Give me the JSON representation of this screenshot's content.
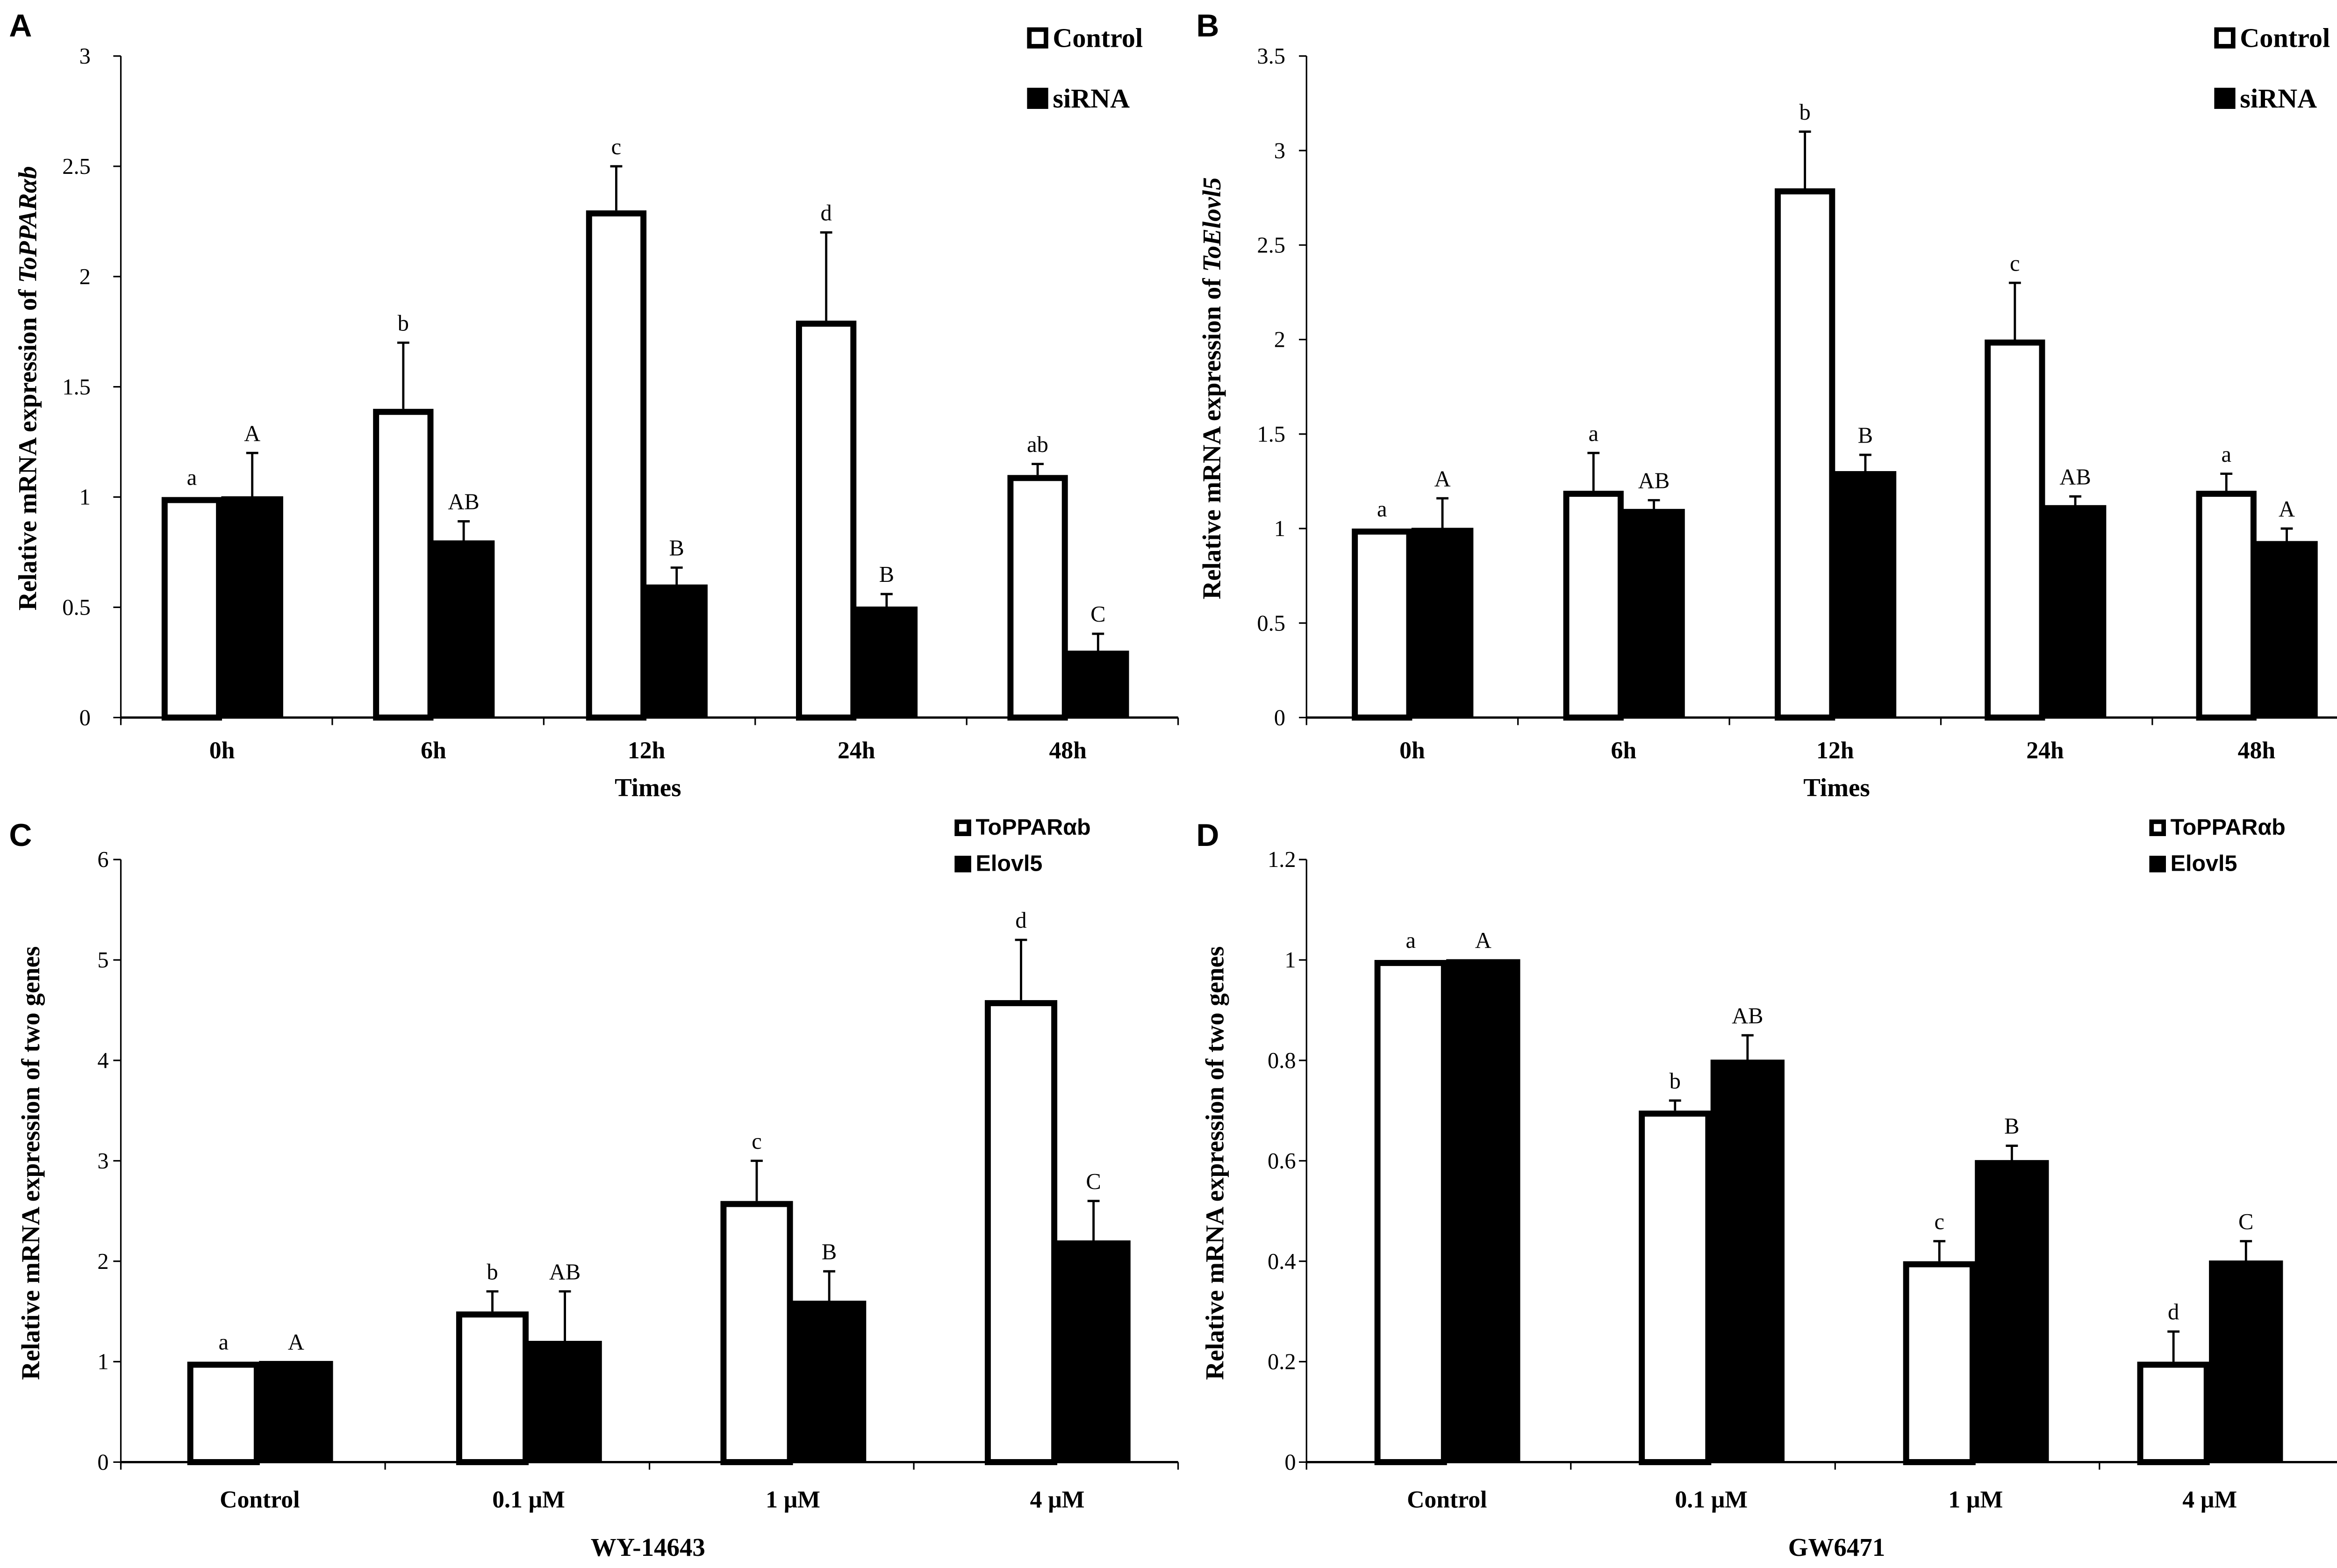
{
  "chart_data": [
    {
      "panel": "A",
      "type": "bar",
      "categories": [
        "0h",
        "6h",
        "12h",
        "24h",
        "48h"
      ],
      "series": [
        {
          "name": "Control",
          "fill": "white",
          "values": [
            1.0,
            1.4,
            2.3,
            1.8,
            1.1
          ],
          "errors": [
            0.0,
            0.3,
            0.2,
            0.4,
            0.05
          ],
          "letters": [
            "a",
            "b",
            "c",
            "d",
            "ab"
          ]
        },
        {
          "name": "siRNA",
          "fill": "black",
          "values": [
            1.0,
            0.8,
            0.6,
            0.5,
            0.3
          ],
          "errors": [
            0.2,
            0.09,
            0.08,
            0.06,
            0.08
          ],
          "letters": [
            "A",
            "AB",
            "B",
            "B",
            "C"
          ]
        }
      ],
      "ylabel_prefix": "Relative mRNA expression of ",
      "ylabel_gene": "ToPPARαb",
      "xlabel": "Times",
      "ylim": [
        0,
        3
      ],
      "yticks": [
        "0",
        "0.5",
        "1",
        "1.5",
        "2",
        "2.5",
        "3"
      ],
      "legend": "top-right"
    },
    {
      "panel": "B",
      "type": "bar",
      "categories": [
        "0h",
        "6h",
        "12h",
        "24h",
        "48h"
      ],
      "series": [
        {
          "name": "Control",
          "fill": "white",
          "values": [
            1.0,
            1.2,
            2.8,
            2.0,
            1.2
          ],
          "errors": [
            0.0,
            0.2,
            0.3,
            0.3,
            0.09
          ],
          "letters": [
            "a",
            "a",
            "b",
            "c",
            "a"
          ]
        },
        {
          "name": "siRNA",
          "fill": "black",
          "values": [
            1.0,
            1.1,
            1.3,
            1.12,
            0.93
          ],
          "errors": [
            0.16,
            0.05,
            0.09,
            0.05,
            0.07
          ],
          "letters": [
            "A",
            "AB",
            "B",
            "AB",
            "A"
          ]
        }
      ],
      "ylabel_prefix": "Relative mRNA expression of ",
      "ylabel_gene": "ToElovl5",
      "xlabel": "Times",
      "ylim": [
        0,
        3.5
      ],
      "yticks": [
        "0",
        "0.5",
        "1",
        "1.5",
        "2",
        "2.5",
        "3",
        "3.5"
      ],
      "legend": "top-right"
    },
    {
      "panel": "C",
      "type": "bar",
      "categories": [
        "Control",
        "0.1 μM",
        "1 μM",
        "4 μM"
      ],
      "series": [
        {
          "name": "ToPPARαb",
          "fill": "white",
          "values": [
            1.0,
            1.5,
            2.6,
            4.6
          ],
          "errors": [
            0.0,
            0.2,
            0.4,
            0.6
          ],
          "letters": [
            "a",
            "b",
            "c",
            "d"
          ]
        },
        {
          "name": "Elovl5",
          "fill": "black",
          "values": [
            1.0,
            1.2,
            1.6,
            2.2
          ],
          "errors": [
            0.0,
            0.5,
            0.3,
            0.4
          ],
          "letters": [
            "A",
            "AB",
            "B",
            "C"
          ]
        }
      ],
      "ylabel_prefix": "Relative mRNA expression of two genes",
      "ylabel_gene": "",
      "xlabel": "WY-14643",
      "ylim": [
        0,
        6
      ],
      "yticks": [
        "0",
        "1",
        "2",
        "3",
        "4",
        "5",
        "6"
      ],
      "legend": "top-right"
    },
    {
      "panel": "D",
      "type": "bar",
      "categories": [
        "Control",
        "0.1 μM",
        "1 μM",
        "4 μM"
      ],
      "series": [
        {
          "name": "ToPPARαb",
          "fill": "white",
          "values": [
            1.0,
            0.7,
            0.4,
            0.2
          ],
          "errors": [
            0.0,
            0.02,
            0.04,
            0.06
          ],
          "letters": [
            "a",
            "b",
            "c",
            "d"
          ]
        },
        {
          "name": "Elovl5",
          "fill": "black",
          "values": [
            1.0,
            0.8,
            0.6,
            0.4
          ],
          "errors": [
            0.0,
            0.05,
            0.03,
            0.04
          ],
          "letters": [
            "A",
            "AB",
            "B",
            "C"
          ]
        }
      ],
      "ylabel_prefix": "Relative mRNA expression of two genes",
      "ylabel_gene": "",
      "xlabel": "GW6471",
      "ylim": [
        0,
        1.2
      ],
      "yticks": [
        "0",
        "0.2",
        "0.4",
        "0.6",
        "0.8",
        "1",
        "1.2"
      ],
      "legend": "top-right"
    }
  ]
}
